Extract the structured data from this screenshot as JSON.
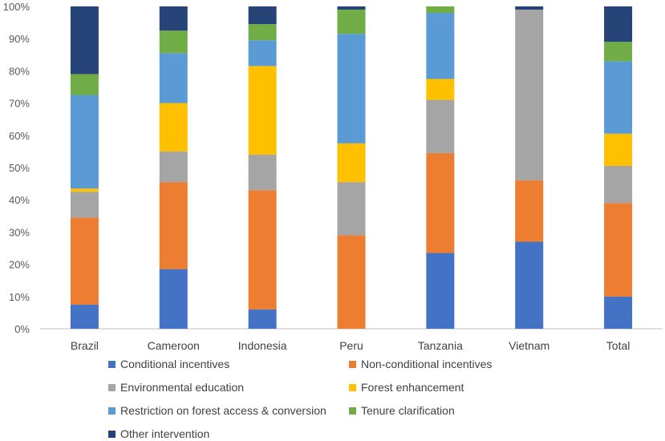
{
  "chart_data": {
    "type": "bar",
    "stacked": true,
    "categories": [
      "Brazil",
      "Cameroon",
      "Indonesia",
      "Peru",
      "Tanzania",
      "Vietnam",
      "Total"
    ],
    "ylim": [
      0,
      100
    ],
    "yticks": [
      "0%",
      "10%",
      "20%",
      "30%",
      "40%",
      "50%",
      "60%",
      "70%",
      "80%",
      "90%",
      "100%"
    ],
    "series": [
      {
        "name": "Conditional incentives",
        "color": "#4472C4",
        "values": [
          7.5,
          18.5,
          6,
          0,
          23.5,
          27,
          10
        ]
      },
      {
        "name": "Non-conditional incentives",
        "color": "#ED7D31",
        "values": [
          27,
          27,
          37,
          29,
          31,
          19,
          29
        ]
      },
      {
        "name": "Environmental education",
        "color": "#A5A5A5",
        "values": [
          8,
          9.5,
          11,
          16.5,
          16.5,
          53,
          11.5
        ]
      },
      {
        "name": "Forest enhancement",
        "color": "#FFC000",
        "values": [
          1,
          15,
          27.5,
          12,
          6.5,
          0,
          10
        ]
      },
      {
        "name": "Restriction on forest access & conversion",
        "color": "#5B9BD5",
        "values": [
          29,
          15.5,
          8,
          34,
          20.5,
          0,
          22.5
        ]
      },
      {
        "name": "Tenure clarification",
        "color": "#70AD47",
        "values": [
          6.5,
          7,
          5,
          7.5,
          2,
          0,
          6
        ]
      },
      {
        "name": "Other intervention",
        "color": "#264478",
        "values": [
          21,
          7.5,
          5.5,
          1,
          0,
          1,
          11
        ]
      }
    ]
  }
}
